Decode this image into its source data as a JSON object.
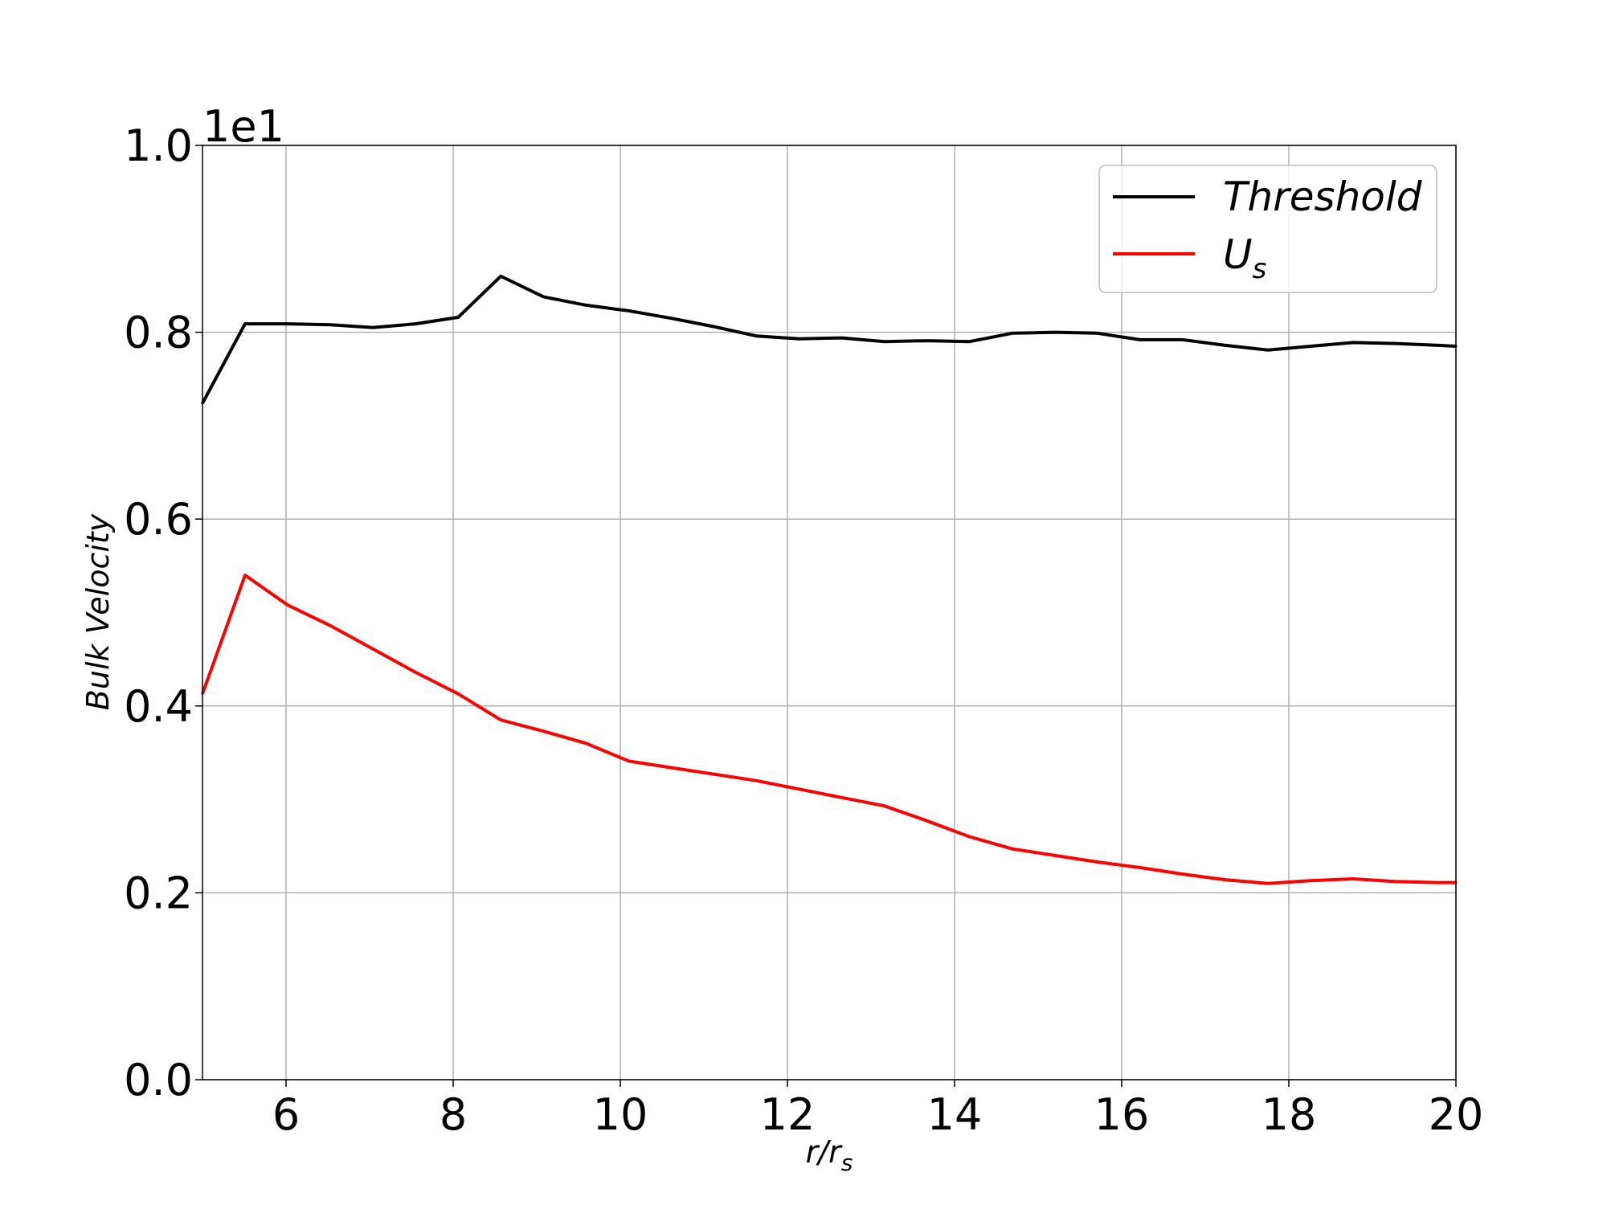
{
  "chart_data": {
    "type": "line",
    "xlabel": "r/r",
    "xlabel_sub": "s",
    "ylabel": "Bulk Velocity",
    "y_offset_text": "1e1",
    "xlim": [
      5,
      20
    ],
    "ylim": [
      0.0,
      1.0
    ],
    "grid": true,
    "legend_position": "top-right",
    "x_ticks": [
      6,
      8,
      10,
      12,
      14,
      16,
      18,
      20
    ],
    "x_tick_labels": [
      "6",
      "8",
      "10",
      "12",
      "14",
      "16",
      "18",
      "20"
    ],
    "y_ticks": [
      0.0,
      0.2,
      0.4,
      0.6,
      0.8,
      1.0
    ],
    "y_tick_labels": [
      "0.0",
      "0.2",
      "0.4",
      "0.6",
      "0.8",
      "1.0"
    ],
    "x": [
      5.0,
      5.51,
      6.02,
      6.53,
      7.04,
      7.55,
      8.06,
      8.57,
      9.08,
      9.59,
      10.1,
      10.61,
      11.12,
      11.63,
      12.14,
      12.65,
      13.16,
      13.67,
      14.18,
      14.69,
      15.2,
      15.71,
      16.22,
      16.73,
      17.24,
      17.75,
      18.26,
      18.77,
      19.28,
      19.79,
      20.0
    ],
    "series": [
      {
        "name": "Threshold",
        "legend_label": "Threshold",
        "color": "#000000",
        "values": [
          0.724,
          0.809,
          0.809,
          0.808,
          0.805,
          0.809,
          0.816,
          0.86,
          0.838,
          0.829,
          0.823,
          0.815,
          0.806,
          0.796,
          0.793,
          0.794,
          0.79,
          0.791,
          0.79,
          0.799,
          0.8,
          0.799,
          0.792,
          0.792,
          0.786,
          0.781,
          0.785,
          0.789,
          0.788,
          0.786,
          0.785
        ]
      },
      {
        "name": "U_s",
        "legend_label": "U",
        "legend_sub": "s",
        "color": "#ff0000",
        "values": [
          0.413,
          0.54,
          0.508,
          0.486,
          0.461,
          0.436,
          0.413,
          0.385,
          0.373,
          0.36,
          0.341,
          0.334,
          0.327,
          0.32,
          0.311,
          0.302,
          0.293,
          0.277,
          0.26,
          0.247,
          0.24,
          0.233,
          0.227,
          0.22,
          0.214,
          0.21,
          0.213,
          0.215,
          0.212,
          0.211,
          0.211
        ]
      }
    ]
  }
}
